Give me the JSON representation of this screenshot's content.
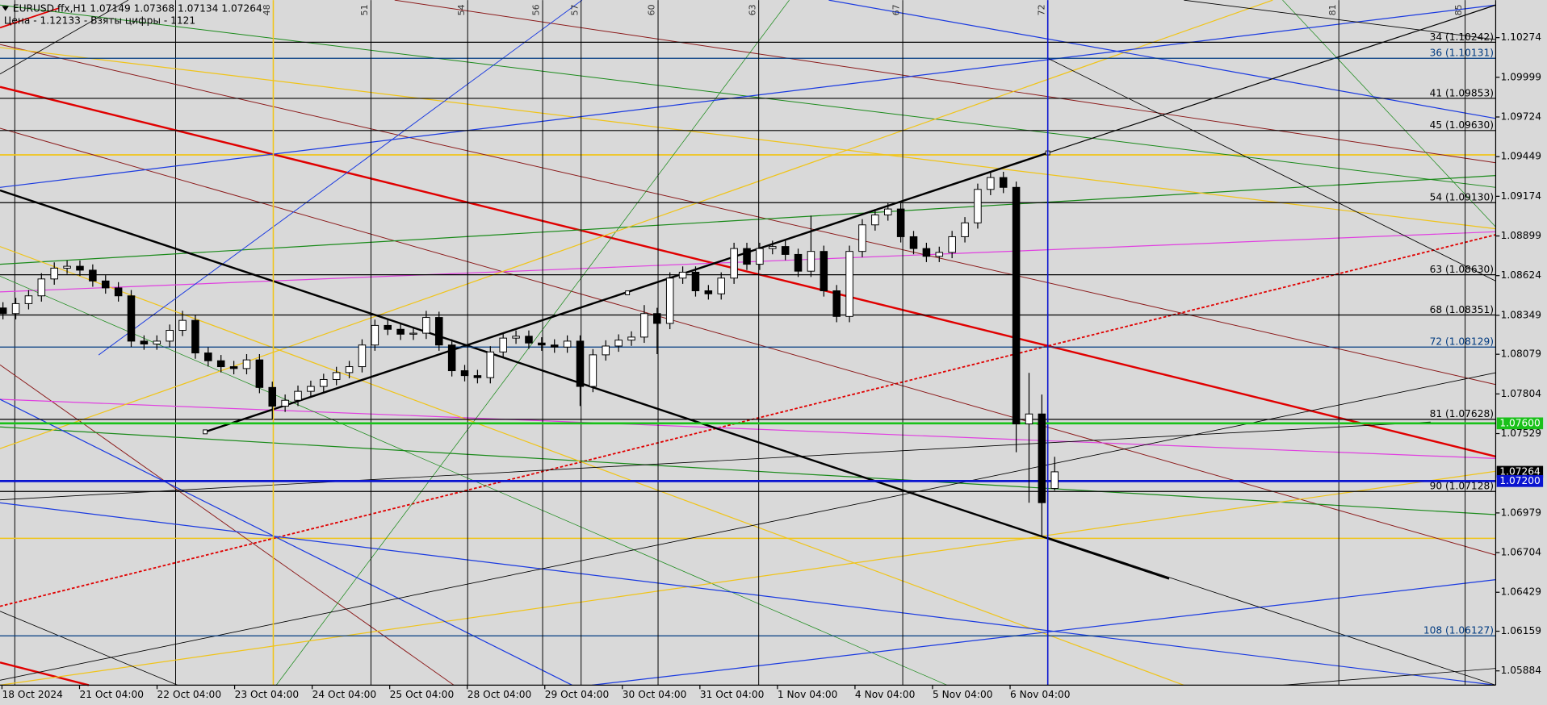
{
  "chart_data": {
    "type": "candlestick",
    "title": "EURUSD.ffx,H1  1.07149 1.07368 1.07134 1.07264",
    "subtitle": "Цена - 1.12133 - Взяты цифры - 1121",
    "x_labels": [
      "18 Oct 2024",
      "21 Oct 04:00",
      "22 Oct 04:00",
      "23 Oct 04:00",
      "24 Oct 04:00",
      "25 Oct 04:00",
      "28 Oct 04:00",
      "29 Oct 04:00",
      "30 Oct 04:00",
      "31 Oct 04:00",
      "1 Nov 04:00",
      "4 Nov 04:00",
      "5 Nov 04:00",
      "6 Nov 04:00"
    ],
    "open": [
      1.084,
      1.08361,
      1.0843,
      1.08484,
      1.08601,
      1.08676,
      1.08689,
      1.08662,
      1.08587,
      1.08539,
      1.08484,
      1.0817,
      1.0815,
      1.0817,
      1.08245,
      1.08314,
      1.08088,
      1.08034,
      1.07993,
      1.0798,
      1.0804,
      1.07849,
      1.07719,
      1.0776,
      1.07822,
      1.07856,
      1.07904,
      1.07952,
      1.07993,
      1.08143,
      1.08279,
      1.08252,
      1.08218,
      1.08225,
      1.08334,
      1.08143,
      1.07965,
      1.07931,
      1.07917,
      1.08095,
      1.08191,
      1.08204,
      1.08157,
      1.08143,
      1.08129,
      1.0817,
      1.07856,
      1.08075,
      1.08136,
      1.08177,
      1.08198,
      1.08361,
      1.08293,
      1.08607,
      1.08648,
      1.08519,
      1.08498,
      1.08607,
      1.08812,
      1.08703,
      1.08812,
      1.08826,
      1.08771,
      1.08655,
      1.08792,
      1.08519,
      1.08341,
      1.08792,
      1.08976,
      1.09045,
      1.09086,
      1.08894,
      1.08812,
      1.08758,
      1.08785,
      1.08894,
      1.0899,
      1.09222,
      1.09304,
      1.09236,
      1.07596,
      1.07665,
      1.07149
    ],
    "high": [
      1.0844,
      1.0847,
      1.08524,
      1.08641,
      1.08716,
      1.08729,
      1.08729,
      1.08702,
      1.08627,
      1.08579,
      1.08524,
      1.0821,
      1.0821,
      1.08285,
      1.0838,
      1.08354,
      1.08128,
      1.08074,
      1.08033,
      1.0808,
      1.0808,
      1.07889,
      1.078,
      1.07862,
      1.07896,
      1.07944,
      1.07992,
      1.08033,
      1.08183,
      1.08319,
      1.08319,
      1.08292,
      1.08265,
      1.0838,
      1.08374,
      1.08183,
      1.08005,
      1.07971,
      1.08135,
      1.08231,
      1.08244,
      1.08244,
      1.08197,
      1.08183,
      1.0821,
      1.0821,
      1.08115,
      1.08176,
      1.08217,
      1.08238,
      1.0842,
      1.08401,
      1.08647,
      1.08688,
      1.08688,
      1.08559,
      1.08647,
      1.08852,
      1.08852,
      1.08852,
      1.08866,
      1.08866,
      1.08811,
      1.0904,
      1.08832,
      1.08559,
      1.08832,
      1.09016,
      1.09085,
      1.09126,
      1.09126,
      1.08934,
      1.08852,
      1.08825,
      1.08934,
      1.0903,
      1.09262,
      1.09344,
      1.09344,
      1.09276,
      1.0795,
      1.078,
      1.07368
    ],
    "low": [
      1.08321,
      1.08321,
      1.0839,
      1.08444,
      1.08561,
      1.08636,
      1.08622,
      1.08547,
      1.08499,
      1.08444,
      1.0813,
      1.0811,
      1.0811,
      1.0813,
      1.08205,
      1.08048,
      1.07994,
      1.07953,
      1.0794,
      1.0794,
      1.07809,
      1.0763,
      1.07679,
      1.0772,
      1.07782,
      1.07816,
      1.07864,
      1.07912,
      1.07953,
      1.08103,
      1.08212,
      1.08178,
      1.08178,
      1.08185,
      1.08103,
      1.07925,
      1.07891,
      1.07877,
      1.07877,
      1.08055,
      1.08151,
      1.08117,
      1.08103,
      1.08089,
      1.08089,
      1.0772,
      1.07816,
      1.08035,
      1.08096,
      1.08137,
      1.08158,
      1.0808,
      1.08253,
      1.08567,
      1.08479,
      1.08458,
      1.08458,
      1.08567,
      1.08663,
      1.08663,
      1.08772,
      1.08731,
      1.08615,
      1.08615,
      1.08479,
      1.08301,
      1.08301,
      1.08752,
      1.08936,
      1.09005,
      1.08854,
      1.08772,
      1.08718,
      1.08718,
      1.08745,
      1.08854,
      1.0895,
      1.09182,
      1.09196,
      1.074,
      1.0705,
      1.06811,
      1.07134
    ],
    "close": [
      1.08361,
      1.0843,
      1.08484,
      1.08601,
      1.08676,
      1.08689,
      1.08662,
      1.08587,
      1.08539,
      1.08484,
      1.0817,
      1.0815,
      1.0817,
      1.08245,
      1.08314,
      1.08088,
      1.08034,
      1.07993,
      1.0798,
      1.0804,
      1.07849,
      1.07719,
      1.0776,
      1.07822,
      1.07856,
      1.07904,
      1.07952,
      1.07993,
      1.08143,
      1.08279,
      1.08252,
      1.08218,
      1.08225,
      1.08334,
      1.08143,
      1.07965,
      1.07931,
      1.07917,
      1.08095,
      1.08191,
      1.08204,
      1.08157,
      1.08143,
      1.08129,
      1.0817,
      1.07856,
      1.08075,
      1.08136,
      1.08177,
      1.08198,
      1.08361,
      1.08293,
      1.08607,
      1.08648,
      1.08519,
      1.08498,
      1.08607,
      1.08812,
      1.08703,
      1.08812,
      1.08826,
      1.08771,
      1.08655,
      1.08792,
      1.08519,
      1.08341,
      1.08792,
      1.08976,
      1.09045,
      1.09086,
      1.08894,
      1.08812,
      1.08758,
      1.08785,
      1.08894,
      1.0899,
      1.09222,
      1.09304,
      1.09236,
      1.07596,
      1.07665,
      1.0705,
      1.07264
    ],
    "up_color": "#ffffff",
    "down_color": "#000000",
    "ylim": [
      1.05785,
      1.10534
    ],
    "yticks": [
      1.10274,
      1.09999,
      1.09724,
      1.09449,
      1.09174,
      1.08899,
      1.08624,
      1.08349,
      1.08079,
      1.07804,
      1.07529,
      1.06979,
      1.06704,
      1.06429,
      1.06159,
      1.05884
    ],
    "levels": [
      {
        "label": "34 (1.10242)",
        "value": 1.10242,
        "color": "#000000"
      },
      {
        "label": "36 (1.10131)",
        "value": 1.10131,
        "color": "#003a80"
      },
      {
        "label": "41 (1.09853)",
        "value": 1.09853,
        "color": "#000000"
      },
      {
        "label": "45 (1.09630)",
        "value": 1.0963,
        "color": "#000000"
      },
      {
        "label": "54 (1.09130)",
        "value": 1.0913,
        "color": "#000000"
      },
      {
        "label": "63 (1.08630)",
        "value": 1.0863,
        "color": "#000000"
      },
      {
        "label": "68 (1.08351)",
        "value": 1.08351,
        "color": "#000000"
      },
      {
        "label": "72 (1.08129)",
        "value": 1.08129,
        "color": "#003a80"
      },
      {
        "label": "81 (1.07628)",
        "value": 1.07628,
        "color": "#000000"
      },
      {
        "label": "90 (1.07128)",
        "value": 1.07128,
        "color": "#000000"
      },
      {
        "label": "108 (1.06127)",
        "value": 1.06127,
        "color": "#003a80"
      }
    ],
    "price_markers": [
      {
        "value": 1.076,
        "label": "1.07600",
        "color": "#19c119",
        "line": true
      },
      {
        "value": 1.07264,
        "label": "1.07264",
        "color": "#000000",
        "line": false
      },
      {
        "value": 1.072,
        "label": "1.07200",
        "color": "#0a14d0",
        "line": true
      }
    ],
    "vlines": [
      48,
      51,
      54,
      56,
      57,
      60,
      63,
      67,
      72,
      81,
      85
    ]
  }
}
